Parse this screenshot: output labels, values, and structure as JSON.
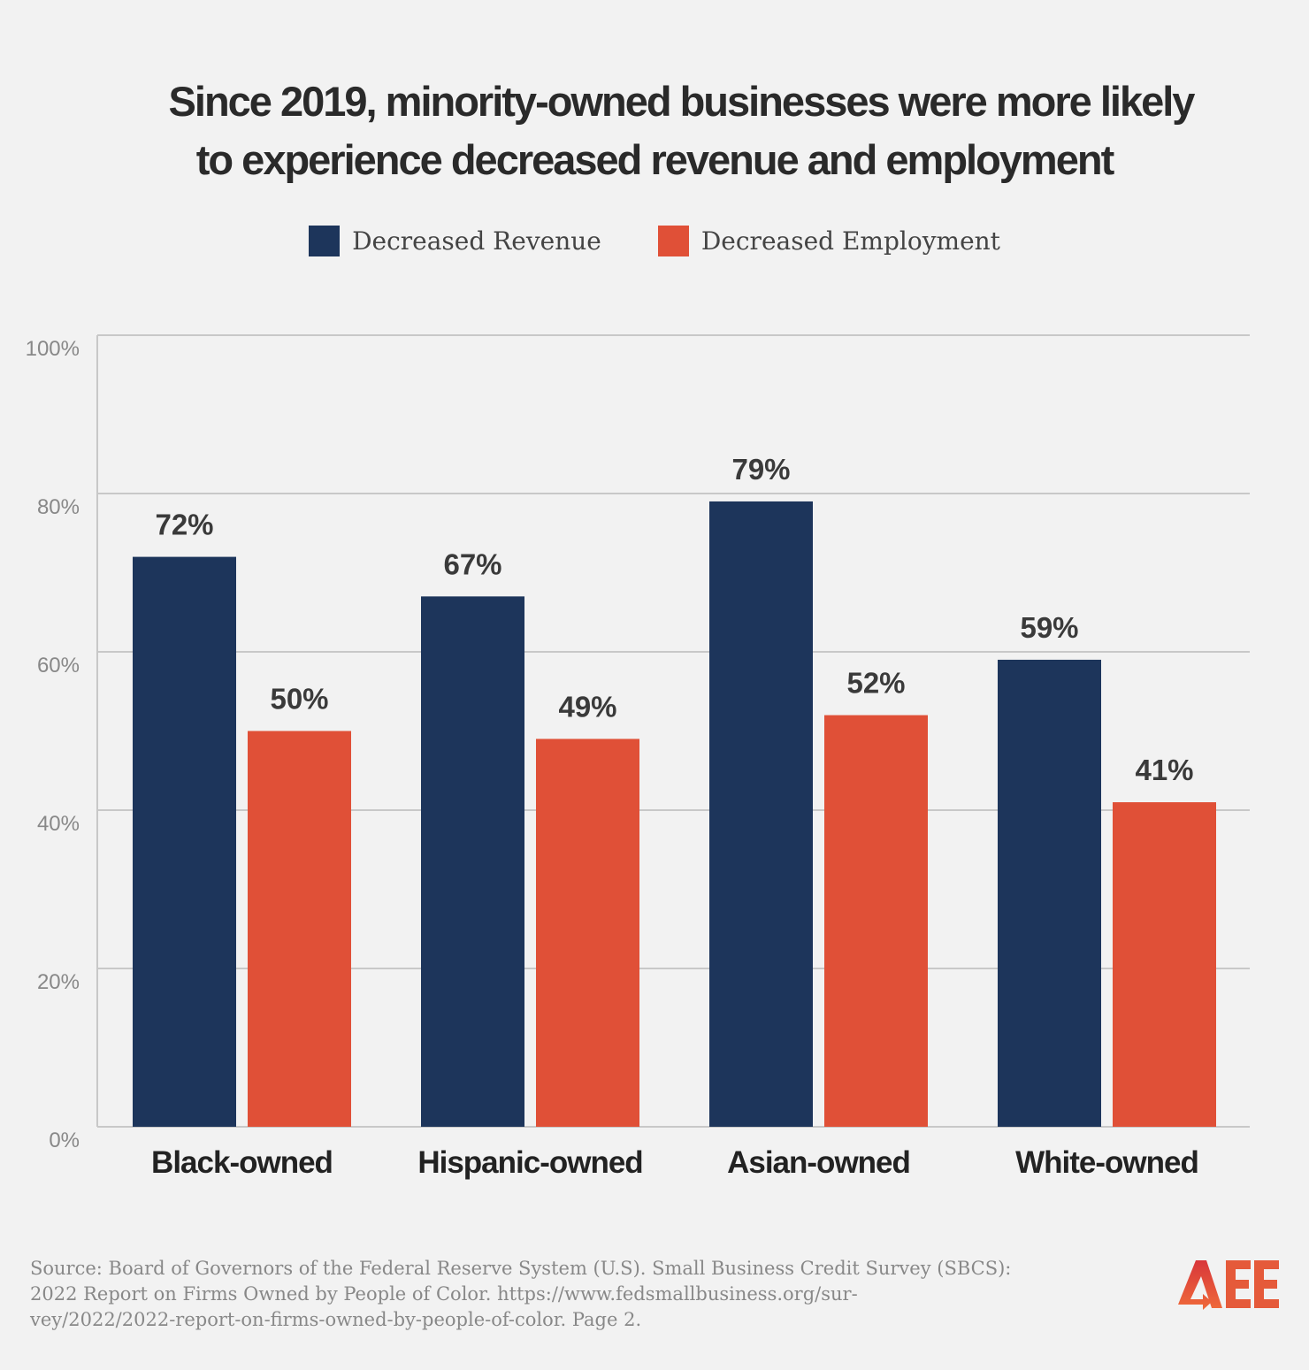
{
  "chart_data": {
    "type": "bar",
    "title": "Since 2019, minority-owned businesses were  more likely to experience decreased revenue and employment",
    "title_lines": [
      "Since 2019, minority-owned businesses were  more likely",
      "to experience decreased revenue and employment"
    ],
    "categories": [
      "Black-owned",
      "Hispanic-owned",
      "Asian-owned",
      "White-owned"
    ],
    "series": [
      {
        "name": "Decreased Revenue",
        "values": [
          72,
          67,
          79,
          59
        ],
        "color": "#1d355b"
      },
      {
        "name": "Decreased Employment",
        "values": [
          50,
          49,
          52,
          41
        ],
        "color": "#e05037"
      }
    ],
    "data_labels": [
      [
        "72%",
        "67%",
        "79%",
        "59%"
      ],
      [
        "50%",
        "49%",
        "52%",
        "41%"
      ]
    ],
    "yticks": [
      "0%",
      "20%",
      "40%",
      "60%",
      "80%",
      "100%"
    ],
    "ylim": [
      0,
      100
    ],
    "xlabel": "",
    "ylabel": "",
    "grid": true,
    "legend_position": "top-center"
  },
  "source": "Source: Board of Governors of the Federal Reserve System (U.S). Small Business Credit Survey (SBCS): 2022 Report on Firms Owned by People of Color. https://www.fedsmallbusiness.org/sur-vey/2022/2022-report-on-firms-owned-by-people-of-color. Page 2.",
  "source_lines": [
    "Source: Board of Governors of the Federal Reserve System (U.S). Small Business Credit Survey (SBCS):",
    "2022 Report on Firms Owned by People of Color. https://www.fedsmallbusiness.org/sur-",
    "vey/2022/2022-report-on-firms-owned-by-people-of-color. Page 2."
  ],
  "logo_text": "AEE"
}
